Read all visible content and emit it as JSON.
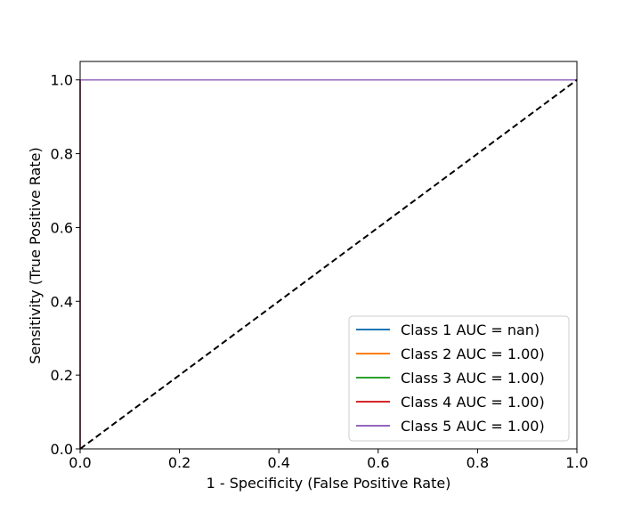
{
  "chart_data": {
    "type": "line",
    "title": "",
    "xlabel": "1 - Specificity (False Positive Rate)",
    "ylabel": "Sensitivity (True Positive Rate)",
    "xlim": [
      0.0,
      1.0
    ],
    "ylim": [
      0.0,
      1.05
    ],
    "xticks": [
      "0.0",
      "0.2",
      "0.4",
      "0.6",
      "0.8",
      "1.0"
    ],
    "yticks": [
      "0.0",
      "0.2",
      "0.4",
      "0.6",
      "0.8",
      "1.0"
    ],
    "grid": false,
    "legend_position": "lower-right",
    "series": [
      {
        "name": "Class 1 AUC = nan)",
        "color": "#1f77b4",
        "x": [],
        "y": []
      },
      {
        "name": "Class 2 AUC = 1.00)",
        "color": "#ff7f0e",
        "x": [
          0.0,
          0.0,
          1.0
        ],
        "y": [
          0.0,
          1.0,
          1.0
        ]
      },
      {
        "name": "Class 3 AUC = 1.00)",
        "color": "#2ca02c",
        "x": [
          0.0,
          0.0,
          1.0
        ],
        "y": [
          0.0,
          1.0,
          1.0
        ]
      },
      {
        "name": "Class 4 AUC = 1.00)",
        "color": "#d62728",
        "x": [
          0.0,
          0.0,
          1.0
        ],
        "y": [
          0.0,
          1.0,
          1.0
        ]
      },
      {
        "name": "Class 5 AUC = 1.00)",
        "color": "#9467bd",
        "x": [
          0.0,
          0.0,
          1.0
        ],
        "y": [
          0.0,
          1.0,
          1.0
        ]
      }
    ],
    "reference_line": {
      "x": [
        0.0,
        1.0
      ],
      "y": [
        0.0,
        1.0
      ],
      "color": "#000000",
      "style": "dashed"
    }
  }
}
